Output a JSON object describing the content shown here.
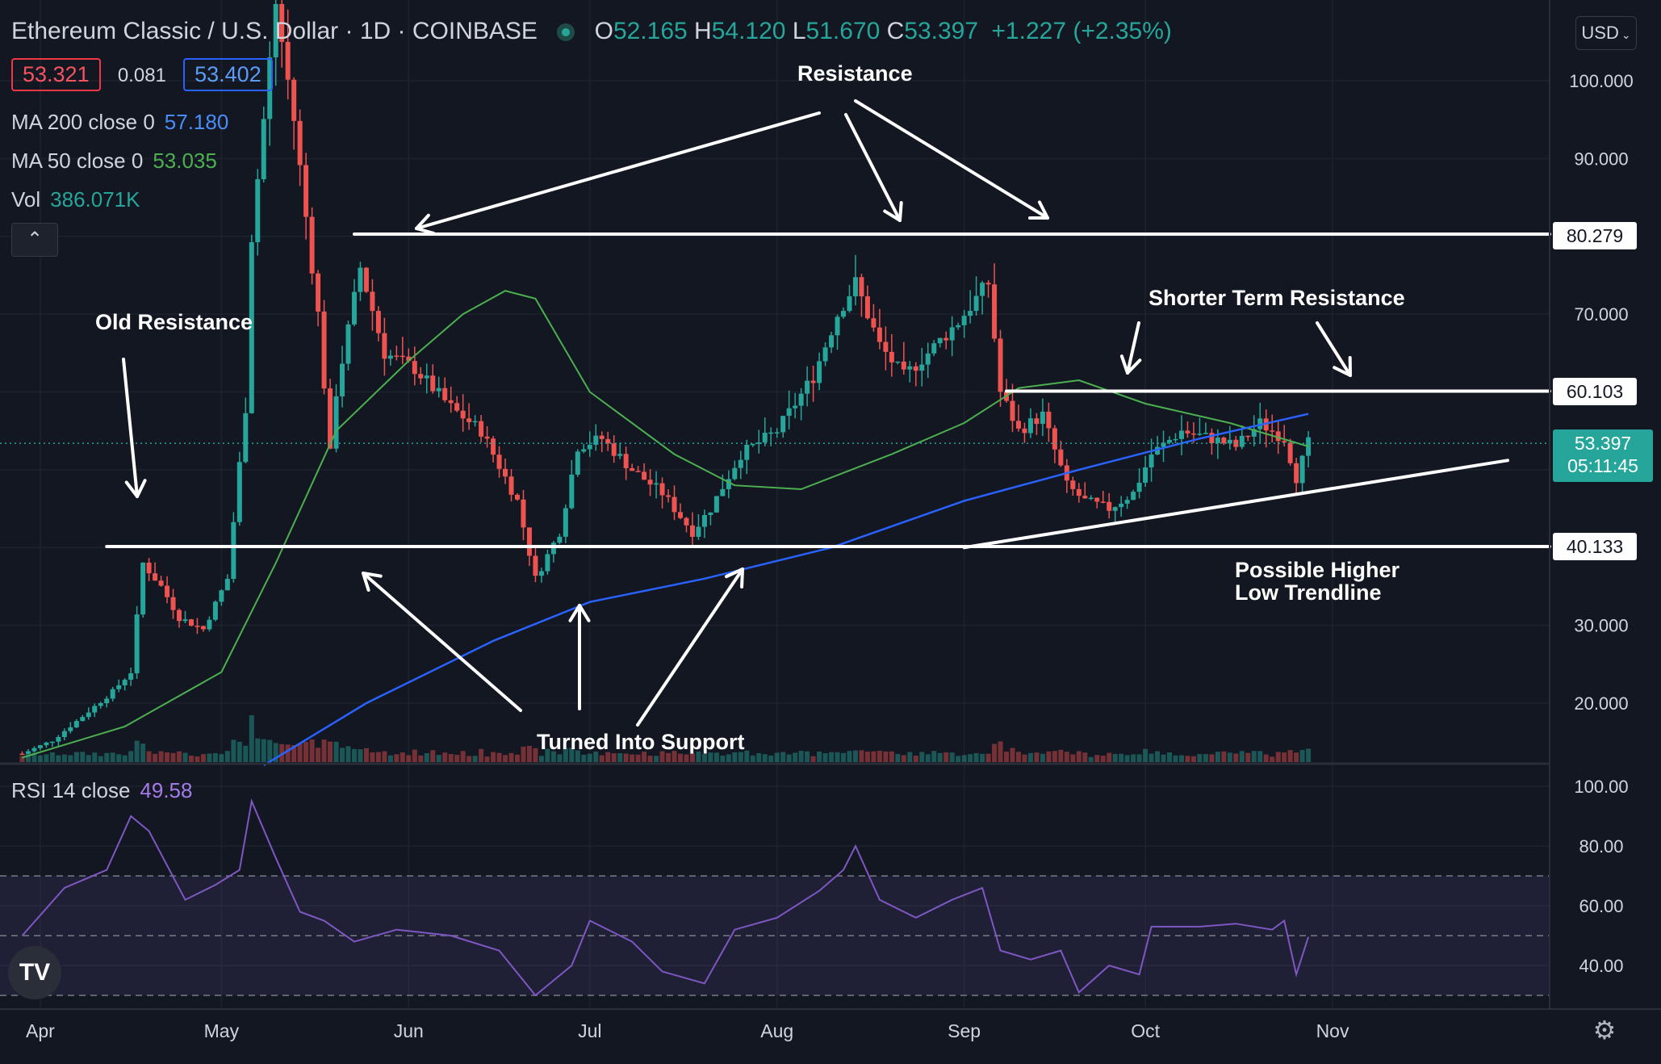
{
  "header": {
    "symbol": "Ethereum Classic / U.S. Dollar",
    "sep1": "·",
    "interval": "1D",
    "sep2": "·",
    "exchange": "COINBASE",
    "o_label": "O",
    "o": "52.165",
    "h_label": "H",
    "h": "54.120",
    "l_label": "L",
    "l": "51.670",
    "c_label": "C",
    "c": "53.397",
    "change": "+1.227 (+2.35%)",
    "bid": "53.321",
    "spread": "0.081",
    "ask": "53.402",
    "currency": "USD",
    "currency_icon": "chevron-down-icon",
    "collapse_icon": "chevron-up-icon",
    "logo_icon": "tradingview-logo",
    "settings_icon": "gear-icon"
  },
  "indicators": {
    "ma200_label": "MA 200 close 0",
    "ma200_value": "57.180",
    "ma50_label": "MA 50 close 0",
    "ma50_value": "53.035",
    "vol_label": "Vol",
    "vol_value": "386.071K",
    "rsi_label": "RSI 14 close",
    "rsi_value": "49.58"
  },
  "colors": {
    "background": "#131722",
    "up": "#26a69a",
    "down": "#ef5350",
    "ma200": "#2962ff",
    "ma50": "#4caf50",
    "rsi": "#7e57c2",
    "annotation": "#ffffff"
  },
  "chart_data": {
    "type": "candlestick",
    "main": {
      "yticks": [
        20,
        30,
        40,
        50,
        60,
        70,
        80,
        90,
        100
      ],
      "ytick_labels": [
        "20.000",
        "30.000",
        "",
        "",
        "",
        "70.000",
        "",
        "90.000",
        "100.000"
      ],
      "ylim": [
        12,
        108
      ],
      "xticks": [
        "Apr",
        "May",
        "Jun",
        "Jul",
        "Aug",
        "Sep",
        "Oct",
        "Nov"
      ],
      "last_price": "53.397",
      "countdown": "05:11:45",
      "levels": [
        {
          "label": "Resistance",
          "value": 80.279,
          "tag": "80.279",
          "from_date": "2021-05-23"
        },
        {
          "label": "Shorter Term Resistance",
          "value": 60.103,
          "tag": "60.103",
          "from_date": "2021-09-08"
        },
        {
          "label": "Old Resistance / Turned Into Support",
          "value": 40.133,
          "tag": "40.133",
          "from_date": "2021-04-12"
        }
      ],
      "trendline": {
        "label": "Possible Higher Low Trendline",
        "points": [
          [
            "2021-09-01",
            40.0
          ],
          [
            "2021-11-30",
            51.2
          ]
        ]
      },
      "annotations": [
        "Resistance",
        "Old Resistance",
        "Shorter Term Resistance",
        "Turned Into Support",
        "Possible Higher Low Trendline"
      ],
      "close_series": {
        "dates": [
          "2021-03-29",
          "2021-04-03",
          "2021-04-08",
          "2021-04-13",
          "2021-04-16",
          "2021-04-18",
          "2021-04-21",
          "2021-04-24",
          "2021-04-28",
          "2021-05-02",
          "2021-05-05",
          "2021-05-06",
          "2021-05-10",
          "2021-05-13",
          "2021-05-17",
          "2021-05-19",
          "2021-05-20",
          "2021-05-24",
          "2021-05-28",
          "2021-06-02",
          "2021-06-08",
          "2021-06-13",
          "2021-06-19",
          "2021-06-22",
          "2021-06-26",
          "2021-06-29",
          "2021-07-03",
          "2021-07-08",
          "2021-07-13",
          "2021-07-18",
          "2021-07-21",
          "2021-07-26",
          "2021-08-01",
          "2021-08-07",
          "2021-08-11",
          "2021-08-14",
          "2021-08-18",
          "2021-08-22",
          "2021-08-26",
          "2021-08-31",
          "2021-09-05",
          "2021-09-07",
          "2021-09-10",
          "2021-09-14",
          "2021-09-18",
          "2021-09-21",
          "2021-09-25",
          "2021-09-29",
          "2021-10-02",
          "2021-10-07",
          "2021-10-12",
          "2021-10-16",
          "2021-10-20",
          "2021-10-24",
          "2021-10-26",
          "2021-10-28"
        ],
        "values": [
          13.5,
          15.2,
          18.3,
          21.5,
          24.0,
          38.0,
          35.0,
          31.0,
          29.5,
          36.0,
          58.0,
          80.0,
          110.0,
          95.0,
          70.0,
          52.0,
          60.0,
          76.0,
          65.0,
          63.0,
          58.0,
          55.0,
          46.0,
          36.0,
          42.0,
          53.0,
          54.0,
          50.0,
          47.0,
          42.0,
          45.0,
          52.0,
          55.0,
          62.0,
          70.0,
          74.0,
          66.0,
          62.0,
          65.0,
          69.0,
          74.0,
          60.0,
          55.0,
          57.0,
          48.0,
          46.0,
          45.0,
          47.0,
          52.0,
          55.0,
          54.0,
          53.0,
          56.0,
          54.0,
          49.0,
          53.4
        ]
      },
      "ma50": {
        "dates": [
          "2021-03-29",
          "2021-04-15",
          "2021-05-01",
          "2021-05-10",
          "2021-05-20",
          "2021-06-01",
          "2021-06-10",
          "2021-06-17",
          "2021-06-22",
          "2021-07-01",
          "2021-07-15",
          "2021-07-25",
          "2021-08-05",
          "2021-08-20",
          "2021-09-01",
          "2021-09-10",
          "2021-09-20",
          "2021-10-01",
          "2021-10-15",
          "2021-10-28"
        ],
        "values": [
          13.0,
          17.0,
          24.0,
          38.0,
          55.0,
          64.0,
          70.0,
          73.0,
          72.0,
          60.0,
          52.0,
          48.0,
          47.5,
          52.0,
          56.0,
          60.5,
          61.5,
          58.5,
          56.0,
          53.0
        ]
      },
      "ma200": {
        "dates": [
          "2021-05-08",
          "2021-05-25",
          "2021-06-15",
          "2021-07-01",
          "2021-07-20",
          "2021-08-10",
          "2021-09-01",
          "2021-09-20",
          "2021-10-10",
          "2021-10-28"
        ],
        "values": [
          12.0,
          20.0,
          28.0,
          33.0,
          36.0,
          40.0,
          46.0,
          50.0,
          54.0,
          57.18
        ]
      }
    },
    "rsi": {
      "yticks": [
        40,
        60,
        80,
        100
      ],
      "ytick_labels": [
        "40.00",
        "60.00",
        "80.00",
        "100.00"
      ],
      "ylim": [
        18,
        100
      ],
      "bands": [
        30,
        50,
        70
      ],
      "dates": [
        "2021-03-29",
        "2021-04-05",
        "2021-04-12",
        "2021-04-16",
        "2021-04-19",
        "2021-04-25",
        "2021-04-30",
        "2021-05-04",
        "2021-05-06",
        "2021-05-10",
        "2021-05-14",
        "2021-05-18",
        "2021-05-23",
        "2021-05-30",
        "2021-06-08",
        "2021-06-16",
        "2021-06-22",
        "2021-06-28",
        "2021-07-01",
        "2021-07-08",
        "2021-07-13",
        "2021-07-20",
        "2021-07-25",
        "2021-08-01",
        "2021-08-08",
        "2021-08-12",
        "2021-08-14",
        "2021-08-18",
        "2021-08-24",
        "2021-08-30",
        "2021-09-04",
        "2021-09-07",
        "2021-09-12",
        "2021-09-17",
        "2021-09-20",
        "2021-09-25",
        "2021-09-30",
        "2021-10-02",
        "2021-10-10",
        "2021-10-16",
        "2021-10-22",
        "2021-10-24",
        "2021-10-26",
        "2021-10-28"
      ],
      "values": [
        50,
        66,
        72,
        90,
        85,
        62,
        67,
        72,
        95,
        76,
        58,
        55,
        48,
        52,
        50,
        45,
        30,
        40,
        55,
        48,
        38,
        34,
        52,
        56,
        65,
        72,
        80,
        62,
        56,
        62,
        66,
        45,
        42,
        45,
        31,
        40,
        37,
        53,
        53,
        54,
        52,
        55,
        37,
        49.58
      ]
    }
  }
}
